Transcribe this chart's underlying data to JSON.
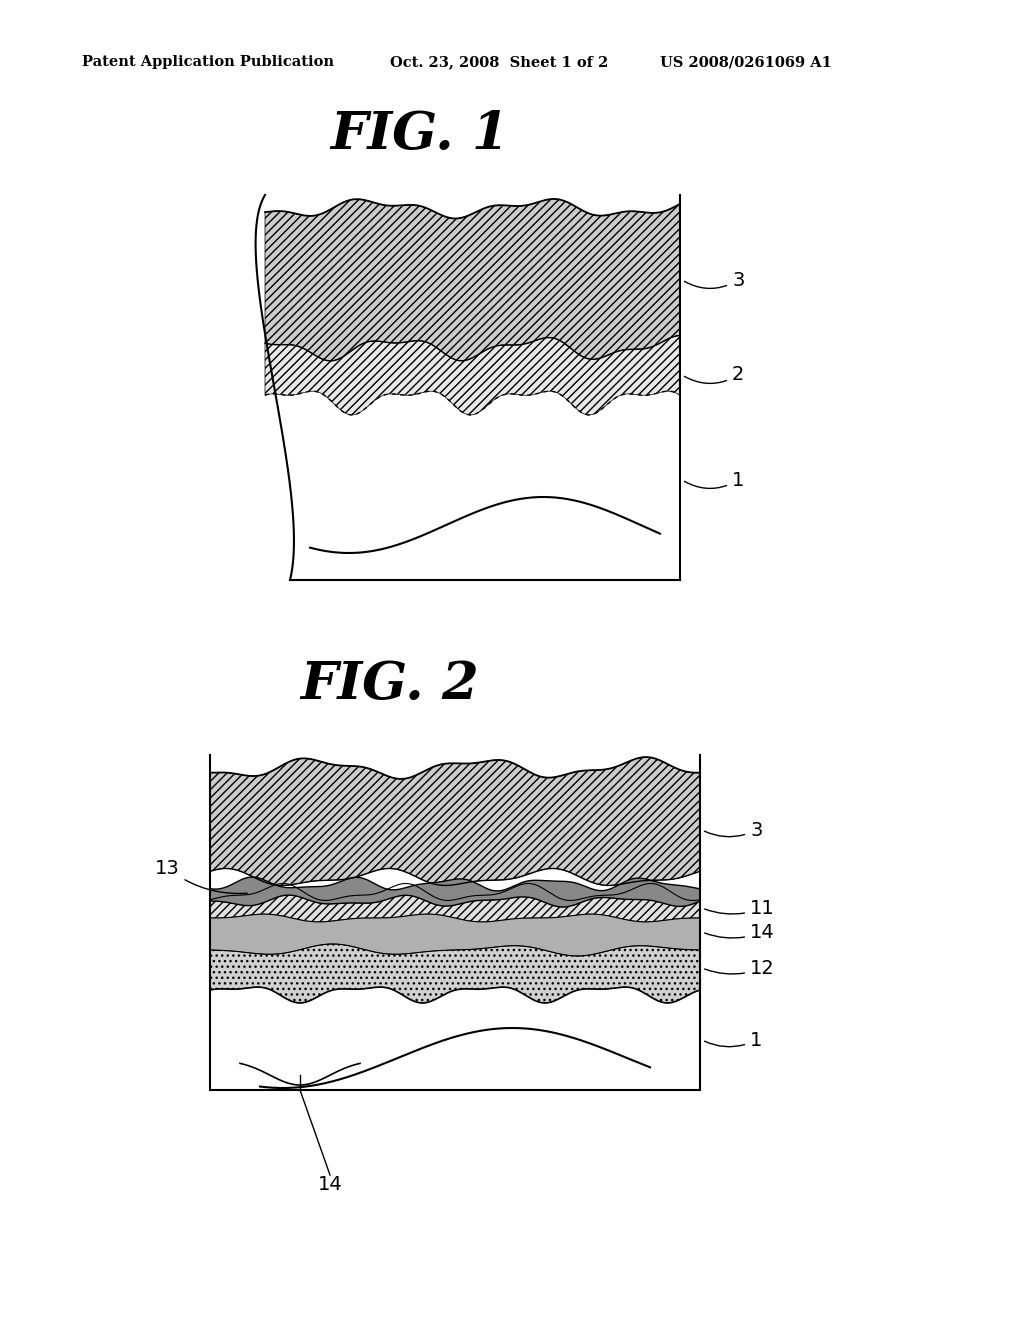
{
  "header_left": "Patent Application Publication",
  "header_mid": "Oct. 23, 2008  Sheet 1 of 2",
  "header_right": "US 2008/0261069 A1",
  "fig1_title": "FIG. 1",
  "fig2_title": "FIG. 2",
  "bg_color": "#ffffff"
}
